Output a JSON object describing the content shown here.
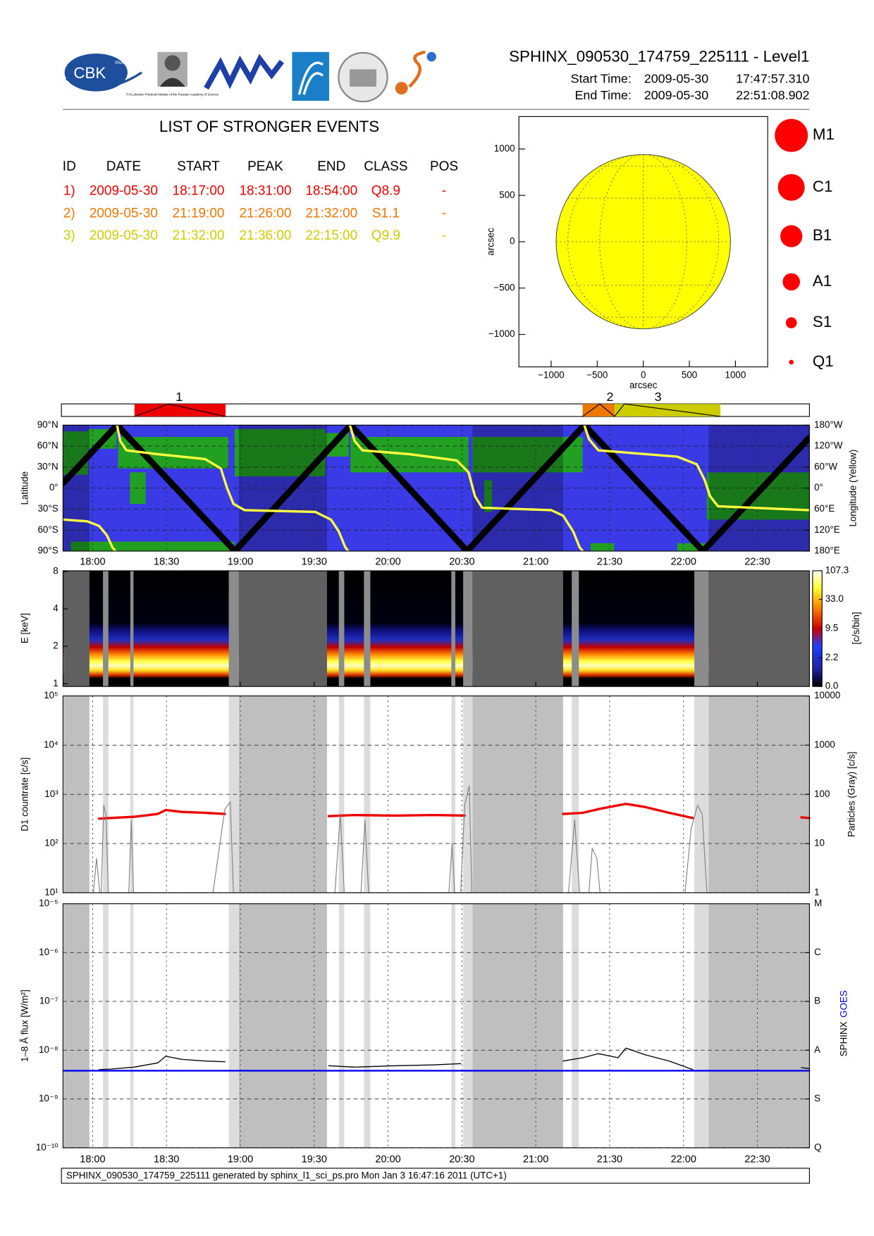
{
  "header": {
    "title": "SPHINX_090530_174759_225111 - Level1",
    "start_label": "Start Time:",
    "start_date": "2009-05-30",
    "start_time": "17:47:57.310",
    "end_label": "End Time:",
    "end_date": "2009-05-30",
    "end_time": "22:51:08.902"
  },
  "logos": {
    "cbk": "CBK",
    "pan": "PAN",
    "lebedev": "P.N.Lebedev Physical Institute of the Russian Academy of Science"
  },
  "events": {
    "title": "LIST OF STRONGER EVENTS",
    "columns": [
      "ID",
      "DATE",
      "START",
      "PEAK",
      "END",
      "CLASS",
      "POS"
    ],
    "rows": [
      [
        "1)",
        "2009-05-30",
        "18:17:00",
        "18:31:00",
        "18:54:00",
        "Q8.9",
        "-"
      ],
      [
        "2)",
        "2009-05-30",
        "21:19:00",
        "21:26:00",
        "21:32:00",
        "S1.1",
        "-"
      ],
      [
        "3)",
        "2009-05-30",
        "21:32:00",
        "21:36:00",
        "22:15:00",
        "Q9.9",
        "-"
      ]
    ],
    "colors": [
      "#ee0000",
      "#ee7700",
      "#cccc00"
    ]
  },
  "time_axis": {
    "xlim": [
      1067.96,
      1371.15
    ],
    "xticks": [
      {
        "value": 1080,
        "label": "18:00"
      },
      {
        "value": 1110,
        "label": "18:30"
      },
      {
        "value": 1140,
        "label": "19:00"
      },
      {
        "value": 1170,
        "label": "19:30"
      },
      {
        "value": 1200,
        "label": "20:00"
      },
      {
        "value": 1230,
        "label": "20:30"
      },
      {
        "value": 1260,
        "label": "21:00"
      },
      {
        "value": 1290,
        "label": "21:30"
      },
      {
        "value": 1320,
        "label": "22:00"
      },
      {
        "value": 1350,
        "label": "22:30"
      }
    ],
    "dark_intervals": [
      [
        1068.2,
        1078.7
      ],
      [
        1139.4,
        1175.2
      ],
      [
        1234.3,
        1271.1
      ],
      [
        1330.2,
        1371.1
      ]
    ],
    "light_intervals": [
      [
        1084.2,
        1086.4
      ],
      [
        1095.3,
        1096.6
      ],
      [
        1135.3,
        1139.4
      ],
      [
        1180.0,
        1182.2
      ],
      [
        1190.2,
        1192.8
      ],
      [
        1225.7,
        1227.3
      ],
      [
        1230.5,
        1234.3
      ],
      [
        1274.6,
        1277.5
      ],
      [
        1324.4,
        1330.2
      ]
    ]
  },
  "chart_data": [
    {
      "type": "disk",
      "xlabel": "arcsec",
      "ylabel": "arcsec",
      "xlim": [
        -1350,
        1350
      ],
      "ylim": [
        -1350,
        1350
      ],
      "xticks": [
        {
          "value": -1000,
          "label": "−1000"
        },
        {
          "value": -500,
          "label": "−500"
        },
        0,
        500,
        1000
      ],
      "yticks": [
        {
          "value": -1000,
          "label": "−1000"
        },
        {
          "value": -500,
          "label": "−500"
        },
        0,
        500,
        1000
      ],
      "disk_radius": 946,
      "disk_color": "#ffff00",
      "legend": [
        "M1",
        "C1",
        "B1",
        "A1",
        "S1",
        "Q1"
      ],
      "legend_color": "#ff0000"
    },
    {
      "type": "timeline",
      "labels": [
        "1",
        "2",
        "3"
      ]
    },
    {
      "type": "track",
      "ylabel": "Latitude",
      "y2label": "Longitude (Yellow)",
      "ylim": [
        -90,
        90
      ],
      "yticks": [
        {
          "value": -90,
          "label": "90°S"
        },
        {
          "value": -60,
          "label": "60°S"
        },
        {
          "value": -30,
          "label": "30°S"
        },
        {
          "value": 0,
          "label": "0°"
        },
        {
          "value": 30,
          "label": "30°N"
        },
        {
          "value": 60,
          "label": "60°N"
        },
        {
          "value": 90,
          "label": "90°N"
        }
      ],
      "y2lim": [
        180,
        -180
      ],
      "y2ticks": [
        {
          "value": -180,
          "label": "180°W"
        },
        {
          "value": -120,
          "label": "120°W"
        },
        {
          "value": -60,
          "label": "60°W"
        },
        {
          "value": 0,
          "label": "0°"
        },
        {
          "value": 60,
          "label": "60°E"
        },
        {
          "value": 120,
          "label": "120°E"
        },
        {
          "value": 180,
          "label": "180°E"
        }
      ],
      "series": [
        {
          "color": "#000000",
          "x": [
            1068.2,
            1089.9,
            1137.8,
            1184.8,
            1232.1,
            1279.7,
            1327.9,
            1371.1
          ],
          "values": [
            8,
            90,
            -90,
            90,
            -90,
            90,
            -90,
            72
          ]
        },
        {
          "color": "#ffff40",
          "axis": "y2",
          "x": [
            1068.2,
            1077.8,
            1082.6,
            1085.8,
            1088.0,
            1089.3,
            1089.6,
            1089.9,
            1091.2,
            1093.7,
            1106.5,
            1125.7,
            1132.1,
            1134.6,
            1137.2,
            1141.7,
            1170.4,
            1176.8,
            1180.0,
            1182.6,
            1183.8,
            1184.1,
            1184.5,
            1186.4,
            1189.6,
            1208.8,
            1227.9,
            1232.7,
            1235.3,
            1238.2,
            1266.3,
            1271.1,
            1275.2,
            1277.8,
            1279.1,
            1279.4,
            1279.7,
            1281.6,
            1285.4,
            1317.4,
            1325.4,
            1328.6,
            1330.8,
            1334.0,
            1371.1
          ],
          "values": [
            90,
            95,
            108,
            135,
            169,
            180,
            null,
            -180,
            -135,
            -108,
            -97,
            -83,
            -56,
            0,
            45,
            63,
            68,
            90,
            124,
            169,
            180,
            null,
            -180,
            -135,
            -108,
            -97,
            -79,
            -45,
            23,
            56,
            63,
            79,
            124,
            169,
            180,
            null,
            -180,
            -140,
            -108,
            -90,
            -68,
            -23,
            23,
            52,
            63
          ]
        }
      ]
    },
    {
      "type": "spectrogram",
      "ylabel": "E [keV]",
      "log_y": true,
      "ylim": [
        0.95,
        8.1
      ],
      "yticks": [
        1,
        2,
        4,
        8
      ],
      "colorbar": {
        "label": "[c/s/bin]",
        "lim": [
          0,
          107.3
        ],
        "ticks": [
          {
            "value": 0,
            "label": "0.0"
          },
          2.2,
          9.5,
          {
            "value": 33,
            "label": "33.0"
          },
          107.3
        ]
      }
    },
    {
      "type": "line",
      "ylabel": "D1 countrate [c/s]",
      "y2label": "Particles (Gray) [c/s]",
      "log_y": true,
      "ylim": [
        10,
        100000
      ],
      "yticks": [
        {
          "value": 10,
          "label": "10¹"
        },
        {
          "value": 100,
          "label": "10²"
        },
        {
          "value": 1000,
          "label": "10³"
        },
        {
          "value": 10000,
          "label": "10⁴"
        },
        {
          "value": 100000,
          "label": "10⁵"
        }
      ],
      "y2lim": [
        1,
        10000
      ],
      "y2ticks": [
        1,
        10,
        100,
        1000,
        10000
      ],
      "series": [
        {
          "color": "#ee0000",
          "width": 3,
          "x": [
            1082.6,
            1087.3,
            1096.9,
            1106.5,
            1109.7,
            1116.1,
            1125.7,
            1133.7,
            1155.0,
            1175.9,
            1186.4,
            1202.4,
            1218.4,
            1231.1,
            1250.0,
            1271.1,
            1279.1,
            1285.4,
            1296.6,
            1304.6,
            1314.2,
            1323.8,
            1345.0,
            1367.9,
            1371.1
          ],
          "values": [
            320,
            330,
            350,
            400,
            480,
            440,
            420,
            400,
            null,
            360,
            380,
            370,
            380,
            370,
            null,
            400,
            420,
            500,
            640,
            550,
            420,
            330,
            null,
            340,
            330
          ]
        },
        {
          "color": "#808080",
          "axis": "y2",
          "width": 1,
          "x": [
            1080.3,
            1081.6,
            1082.9,
            1083.5,
            1084.5,
            1085.4,
            1086.4,
            1094.7,
            1095.7,
            1096.6,
            1128.9,
            1131.4,
            1133.7,
            1135.9,
            1137.2,
            1155.0,
            1178.4,
            1180.6,
            1182.2,
            1189.0,
            1190.6,
            1192.1,
            1224.7,
            1226.0,
            1227.0,
            1229.5,
            1231.1,
            1233.0,
            1234.0,
            1250.0,
            1273.3,
            1275.8,
            1277.8,
            1281.6,
            1282.9,
            1284.8,
            1286.1,
            1320.6,
            1323.1,
            1325.7,
            1327.6,
            1329.5
          ],
          "values": [
            1,
            5,
            1,
            1,
            60,
            40,
            1,
            1,
            30,
            1,
            1,
            8,
            50,
            70,
            1,
            null,
            1,
            40,
            1,
            1,
            30,
            1,
            1,
            10,
            1,
            1,
            60,
            150,
            1,
            null,
            1,
            30,
            1,
            1,
            8,
            5,
            1,
            1,
            20,
            60,
            40,
            1
          ]
        }
      ]
    },
    {
      "type": "line",
      "ylabel": "1–8 Å flux [W/m²]",
      "log_y": true,
      "legend": "right",
      "ylim": [
        1e-10,
        1e-05
      ],
      "yticks": [
        {
          "value": 1e-10,
          "label": "10⁻¹⁰"
        },
        {
          "value": 1e-09,
          "label": "10⁻⁹"
        },
        {
          "value": 1e-08,
          "label": "10⁻⁸"
        },
        {
          "value": 1e-07,
          "label": "10⁻⁷"
        },
        {
          "value": 1e-06,
          "label": "10⁻⁶"
        },
        {
          "value": 1e-05,
          "label": "10⁻⁵"
        }
      ],
      "y2lim": [
        1e-10,
        1e-05
      ],
      "y2ticks": [
        {
          "value": 1e-10,
          "label": "Q"
        },
        {
          "value": 1e-09,
          "label": "S"
        },
        {
          "value": 1e-08,
          "label": "A"
        },
        {
          "value": 1e-07,
          "label": "B"
        },
        {
          "value": 1e-06,
          "label": "C"
        },
        {
          "value": 1e-05,
          "label": "M"
        }
      ],
      "series": [
        {
          "name": "SPHINX",
          "color": "#000000",
          "width": 1.2,
          "x": [
            1082.6,
            1087.3,
            1096.9,
            1106.5,
            1109.7,
            1116.1,
            1125.7,
            1133.7,
            1154.4,
            1175.9,
            1186.4,
            1202.4,
            1218.4,
            1229.5,
            1250.3,
            1271.1,
            1279.1,
            1285.4,
            1293.4,
            1296.6,
            1304.6,
            1314.2,
            1323.8,
            1346.2,
            1367.9,
            1371.1
          ],
          "values": [
            4e-09,
            4.1e-09,
            4.5e-09,
            5.5e-09,
            7.5e-09,
            6.5e-09,
            6e-09,
            5.8e-09,
            null,
            4.8e-09,
            4.5e-09,
            4.8e-09,
            5e-09,
            5.3e-09,
            null,
            6e-09,
            7e-09,
            8.5e-09,
            7e-09,
            1.1e-08,
            8e-09,
            6e-09,
            4e-09,
            null,
            4.4e-09,
            4.2e-09
          ]
        },
        {
          "name": "GOES",
          "color": "#0000ee",
          "width": 2.2,
          "x": [
            1068.2,
            1371.1
          ],
          "values": [
            3.8e-09,
            3.8e-09
          ]
        }
      ]
    }
  ],
  "footer": "SPHINX_090530_174759_225111 generated by sphinx_l1_sci_ps.pro Mon Jan  3 16:47:16 2011 (UTC+1)"
}
